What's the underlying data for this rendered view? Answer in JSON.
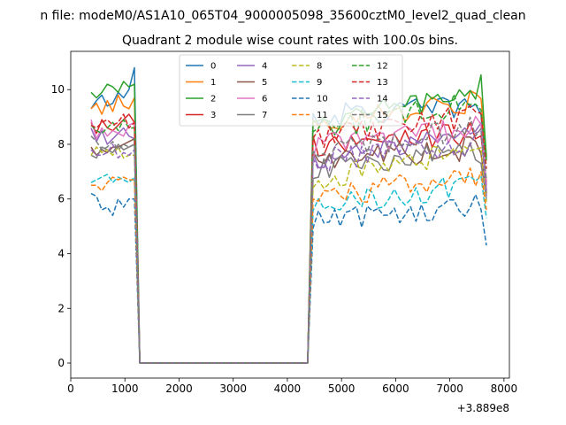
{
  "chart_data": {
    "type": "line",
    "suptitle": "n file: modeM0/AS1A10_065T04_9000005098_35600cztM0_level2_quad_clean",
    "title": "Quadrant 2 module wise count rates with 100.0s bins.",
    "xlabel": "",
    "ylabel": "",
    "x_offset_label": "+3.889e8",
    "xlim": [
      0,
      8100
    ],
    "ylim": [
      -0.55,
      11.4
    ],
    "xticks": [
      0,
      1000,
      2000,
      3000,
      4000,
      5000,
      6000,
      7000,
      8000
    ],
    "xtick_labels": [
      "0",
      "1000",
      "2000",
      "3000",
      "4000",
      "5000",
      "6000",
      "7000",
      "8000"
    ],
    "yticks": [
      0,
      2,
      4,
      6,
      8,
      10
    ],
    "ytick_labels": [
      "0",
      "2",
      "4",
      "6",
      "8",
      "10"
    ],
    "legend_position": "upper-center",
    "legend_columns": 4,
    "x": [
      375,
      475,
      575,
      675,
      775,
      875,
      975,
      1075,
      1175,
      1275,
      1375,
      1475,
      1575,
      1675,
      1775,
      1875,
      1975,
      2075,
      2175,
      2275,
      2375,
      2475,
      2575,
      2675,
      2775,
      2875,
      2975,
      3075,
      3175,
      3275,
      3375,
      3475,
      3575,
      3675,
      3775,
      3875,
      3975,
      4075,
      4175,
      4275,
      4375,
      4475,
      4575,
      4675,
      4775,
      4875,
      4975,
      5075,
      5175,
      5275,
      5375,
      5475,
      5575,
      5675,
      5775,
      5875,
      5975,
      6075,
      6175,
      6275,
      6375,
      6475,
      6575,
      6675,
      6775,
      6875,
      6975,
      7075,
      7175,
      7275,
      7375,
      7475,
      7575,
      7675
    ],
    "gap": {
      "start_index": 10,
      "end_index": 40
    },
    "series": [
      {
        "name": "0",
        "color": "#1f77b4",
        "dash": "solid",
        "base": 9.6,
        "early": [
          9.3,
          9.6,
          9.8,
          9.4,
          9.5,
          9.9,
          9.7,
          10.0,
          10.8
        ],
        "late_start": 9.0,
        "late_end": 9.4,
        "late_final": 6.5
      },
      {
        "name": "1",
        "color": "#ff7f0e",
        "dash": "solid",
        "base": 9.2,
        "early": [
          9.3,
          9.5,
          9.1,
          9.6,
          9.2,
          9.8,
          9.4,
          9.3,
          9.7
        ],
        "late_start": 8.7,
        "late_end": 9.6,
        "late_final": 7.6
      },
      {
        "name": "2",
        "color": "#2ca02c",
        "dash": "solid",
        "base": 9.9,
        "early": [
          9.9,
          9.7,
          9.9,
          10.2,
          10.1,
          9.9,
          10.3,
          10.1,
          10.2
        ],
        "late_start": 8.6,
        "late_end": 10.1,
        "late_final": 7.5
      },
      {
        "name": "3",
        "color": "#d62728",
        "dash": "solid",
        "base": 8.6,
        "early": [
          8.8,
          8.4,
          8.9,
          8.6,
          8.5,
          8.7,
          8.9,
          9.1,
          8.8
        ],
        "late_start": 8.0,
        "late_end": 8.4,
        "late_final": 6.6
      },
      {
        "name": "4",
        "color": "#9467bd",
        "dash": "solid",
        "base": 8.3,
        "early": [
          8.6,
          8.1,
          8.5,
          8.0,
          8.2,
          8.4,
          8.6,
          8.3,
          8.2
        ],
        "late_start": 7.3,
        "late_end": 8.5,
        "late_final": 6.3
      },
      {
        "name": "5",
        "color": "#8c564b",
        "dash": "solid",
        "base": 7.9,
        "early": [
          7.9,
          7.6,
          7.8,
          7.7,
          7.9,
          7.9,
          8.0,
          8.1,
          8.2
        ],
        "late_start": 7.3,
        "late_end": 7.9,
        "late_final": 6.2
      },
      {
        "name": "6",
        "color": "#e377c2",
        "dash": "solid",
        "base": 8.5,
        "early": [
          8.9,
          8.2,
          8.6,
          8.3,
          8.5,
          8.4,
          8.3,
          8.7,
          8.8
        ],
        "late_start": 7.9,
        "late_end": 8.6,
        "late_final": 6.5
      },
      {
        "name": "7",
        "color": "#7f7f7f",
        "dash": "solid",
        "base": 7.6,
        "early": [
          7.6,
          7.5,
          7.9,
          7.8,
          7.7,
          8.0,
          7.8,
          7.9,
          8.0
        ],
        "late_start": 7.1,
        "late_end": 7.7,
        "late_final": 6.0
      },
      {
        "name": "8",
        "color": "#bcbd22",
        "dash": "dashed",
        "base": 7.6,
        "early": [
          7.6,
          7.9,
          7.7,
          7.8,
          7.6,
          7.9,
          7.5,
          7.6,
          7.6
        ],
        "late_start": 6.7,
        "late_end": 7.9,
        "late_final": 5.9
      },
      {
        "name": "9",
        "color": "#17becf",
        "dash": "dashed",
        "base": 6.7,
        "early": [
          6.6,
          6.7,
          6.8,
          6.9,
          6.6,
          6.8,
          6.7,
          6.6,
          6.8
        ],
        "late_start": 5.8,
        "late_end": 6.5,
        "late_final": 5.3
      },
      {
        "name": "10",
        "color": "#1f77b4",
        "dash": "dashed",
        "base": 5.7,
        "early": [
          6.2,
          6.1,
          5.6,
          5.7,
          5.4,
          6.0,
          5.7,
          6.0,
          6.0
        ],
        "late_start": 5.1,
        "late_end": 5.8,
        "late_final": 4.3
      },
      {
        "name": "11",
        "color": "#ff7f0e",
        "dash": "dashed",
        "base": 6.5,
        "early": [
          6.5,
          6.5,
          6.3,
          6.6,
          6.8,
          6.7,
          6.8,
          6.7,
          6.7
        ],
        "late_start": 6.1,
        "late_end": 6.8,
        "late_final": 5.6
      },
      {
        "name": "12",
        "color": "#2ca02c",
        "dash": "dashed",
        "base": 8.6,
        "early": [
          8.7,
          8.5,
          8.4,
          8.6,
          8.8,
          8.5,
          8.9,
          8.6,
          8.6
        ],
        "late_start": 8.5,
        "late_end": 9.6,
        "late_final": 7.4
      },
      {
        "name": "13",
        "color": "#d62728",
        "dash": "dashed",
        "base": 8.7,
        "early": [
          8.7,
          8.6,
          8.8,
          8.9,
          8.7,
          8.8,
          9.1,
          8.6,
          8.8
        ],
        "late_start": 8.2,
        "late_end": 9.1,
        "late_final": 7.1
      },
      {
        "name": "14",
        "color": "#9467bd",
        "dash": "dashed",
        "base": 7.6,
        "early": [
          7.8,
          7.6,
          7.6,
          7.7,
          8.0,
          7.5,
          7.7,
          7.6,
          7.8
        ],
        "late_start": 7.4,
        "late_end": 8.1,
        "late_final": 6.1
      },
      {
        "name": "15",
        "color": "#7f7f7f",
        "dash": "dashed",
        "base": 7.9,
        "early": [
          8.3,
          8.1,
          7.8,
          7.9,
          8.1,
          7.8,
          8.0,
          7.9,
          8.0
        ],
        "late_start": 7.6,
        "late_end": 8.7,
        "late_final": 6.7
      }
    ]
  }
}
